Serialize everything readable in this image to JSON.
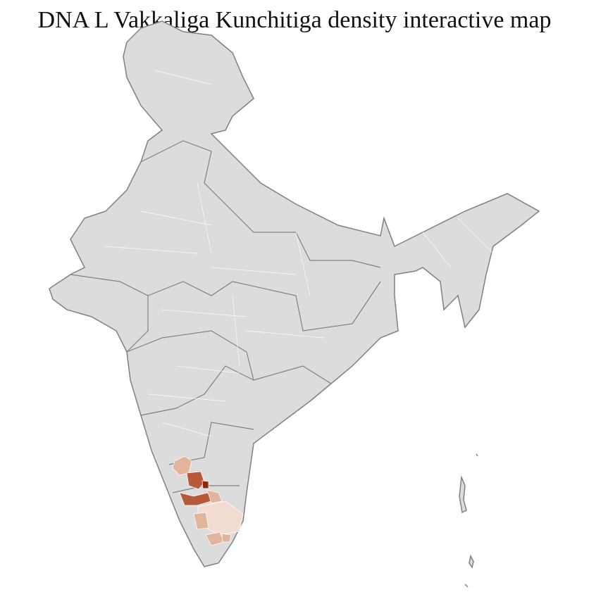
{
  "title": "DNA L Vakkaliga Kunchitiga density interactive map",
  "map": {
    "region": "India",
    "base_fill": "#dcdcdc",
    "district_border": "#ffffff",
    "state_border": "#808080",
    "density_colors": [
      "#f2dcd1",
      "#e3b49c",
      "#cc8466",
      "#b75a3c",
      "#8a2a10"
    ]
  }
}
